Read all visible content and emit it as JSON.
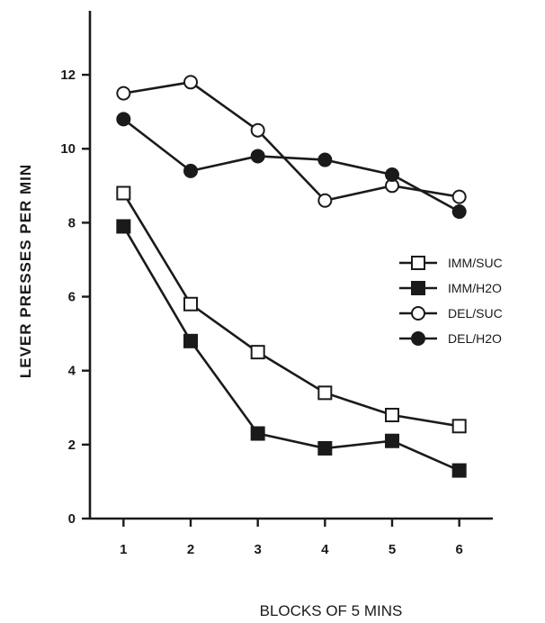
{
  "chart_data": {
    "type": "line",
    "xlabel": "BLOCKS OF 5 MINS",
    "ylabel": "LEVER PRESSES PER MIN",
    "x": [
      1,
      2,
      3,
      4,
      5,
      6
    ],
    "xlim": [
      0.5,
      6.5
    ],
    "ylim": [
      0,
      13
    ],
    "xticks": [
      "1",
      "2",
      "3",
      "4",
      "5",
      "6"
    ],
    "yticks": [
      "0",
      "2",
      "4",
      "6",
      "8",
      "10",
      "12"
    ],
    "grid": false,
    "legend_position": "right",
    "series": [
      {
        "name": "IMM/SUC",
        "marker": "square-open",
        "values": [
          8.8,
          5.8,
          4.5,
          3.4,
          2.8,
          2.5
        ]
      },
      {
        "name": "IMM/H2O",
        "marker": "square-filled",
        "values": [
          7.9,
          4.8,
          2.3,
          1.9,
          2.1,
          1.3
        ]
      },
      {
        "name": "DEL/SUC",
        "marker": "circle-open",
        "values": [
          11.5,
          11.8,
          10.5,
          8.6,
          9.0,
          8.7
        ]
      },
      {
        "name": "DEL/H2O",
        "marker": "circle-filled",
        "values": [
          10.8,
          9.4,
          9.8,
          9.7,
          9.3,
          8.3
        ]
      }
    ],
    "colors": {
      "ink": "#1a1a1a",
      "background": "#ffffff"
    }
  }
}
